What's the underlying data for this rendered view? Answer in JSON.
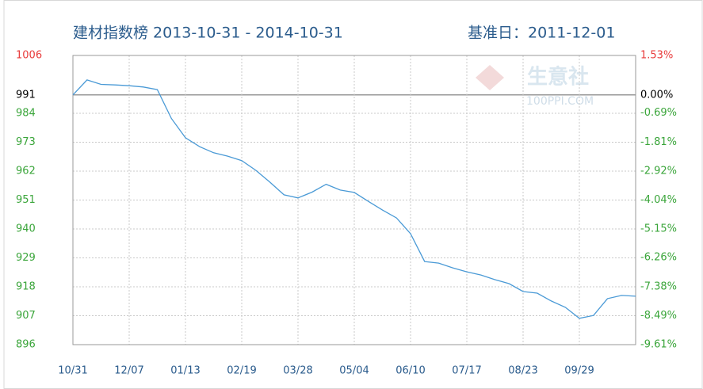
{
  "chart_data": {
    "type": "line",
    "title": "建材指数榜 2013-10-31 - 2014-10-31",
    "subtitle": "基准日：2011-12-01",
    "watermark": [
      "生意社",
      "100PPI.COM"
    ],
    "categories": [
      "10/31",
      null,
      null,
      null,
      "12/07",
      null,
      null,
      null,
      "01/13",
      null,
      null,
      null,
      "02/19",
      null,
      null,
      null,
      "03/28",
      null,
      null,
      null,
      "05/04",
      null,
      null,
      null,
      "06/10",
      null,
      null,
      null,
      "07/17",
      null,
      null,
      null,
      "08/23",
      null,
      null,
      null,
      "09/29",
      null,
      null,
      null,
      null
    ],
    "series": [
      {
        "color": "#4a9ad6",
        "values": [
          991,
          996.7,
          995,
          994.8,
          994.5,
          994,
          993,
          982,
          974.7,
          971.3,
          969,
          967.7,
          966,
          962.3,
          957.8,
          953,
          951.8,
          954,
          957,
          954.8,
          953.9,
          950.5,
          947.2,
          944.2,
          938.2,
          927.6,
          927,
          925.2,
          923.7,
          922.5,
          920.7,
          919.2,
          916.2,
          915.6,
          912.6,
          910.2,
          906,
          907.1,
          913.5,
          914.7,
          914.4
        ]
      }
    ],
    "ylim": [
      896,
      1006
    ],
    "yticks": [
      1006,
      991,
      984,
      973,
      962,
      951,
      940,
      929,
      918,
      907,
      896
    ],
    "ytick_colors": [
      "#e83a3a",
      "#000000",
      "#3aa53a",
      "#3aa53a",
      "#3aa53a",
      "#3aa53a",
      "#3aa53a",
      "#3aa53a",
      "#3aa53a",
      "#3aa53a",
      "#3aa53a"
    ],
    "y2lim": [
      -9.61,
      1.53
    ],
    "y2ticks": [
      {
        "value": 1.53,
        "label": "1.53%"
      },
      {
        "value": 0,
        "label": "0.00%"
      },
      {
        "value": -0.69,
        "label": "-0.69%"
      },
      {
        "value": -1.81,
        "label": "-1.81%"
      },
      {
        "value": -2.92,
        "label": "-2.92%"
      },
      {
        "value": -4.04,
        "label": "-4.04%"
      },
      {
        "value": -5.15,
        "label": "-5.15%"
      },
      {
        "value": -6.26,
        "label": "-6.26%"
      },
      {
        "value": -7.38,
        "label": "-7.38%"
      },
      {
        "value": -8.49,
        "label": "-8.49%"
      },
      {
        "value": -9.61,
        "label": "-9.61%"
      }
    ],
    "y2tick_colors": [
      "#e83a3a",
      "#000000",
      "#3aa53a",
      "#3aa53a",
      "#3aa53a",
      "#3aa53a",
      "#3aa53a",
      "#3aa53a",
      "#3aa53a",
      "#3aa53a",
      "#3aa53a"
    ],
    "reference_line": 991,
    "grid": true
  }
}
